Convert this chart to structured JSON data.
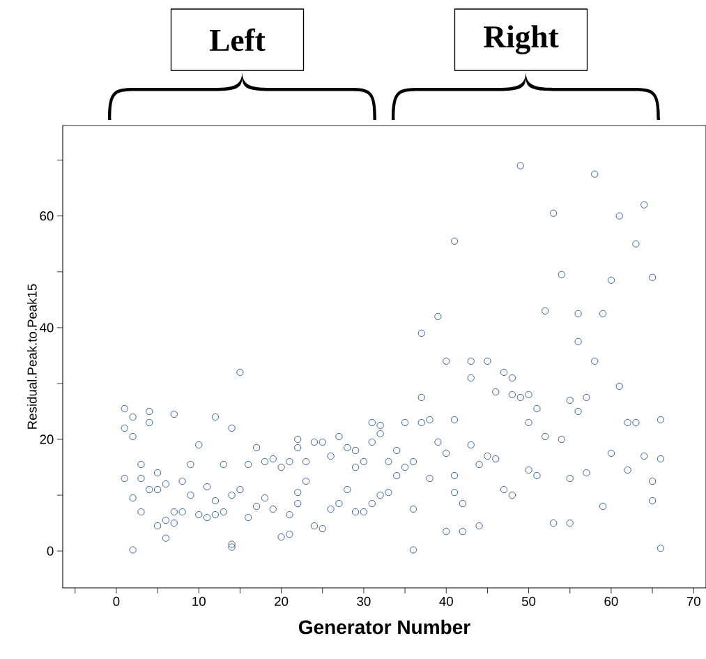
{
  "chart_data": {
    "type": "scatter",
    "xlabel": "Generator Number",
    "ylabel": "Residual.Peak.to.Peak15",
    "annotations": [
      "Left",
      "Right"
    ],
    "x": [
      1,
      1,
      1,
      2,
      2,
      2,
      2,
      3,
      3,
      3,
      4,
      4,
      4,
      5,
      5,
      5,
      6,
      6,
      6,
      7,
      7,
      7,
      8,
      8,
      9,
      9,
      10,
      10,
      11,
      11,
      12,
      12,
      12,
      13,
      13,
      14,
      14,
      14,
      14,
      15,
      15,
      16,
      16,
      17,
      17,
      18,
      18,
      19,
      19,
      20,
      20,
      21,
      21,
      21,
      22,
      22,
      22,
      22,
      23,
      23,
      24,
      24,
      25,
      25,
      26,
      26,
      27,
      27,
      28,
      28,
      29,
      29,
      29,
      30,
      30,
      31,
      31,
      31,
      32,
      32,
      32,
      33,
      33,
      34,
      34,
      35,
      35,
      36,
      36,
      36,
      37,
      37,
      37,
      38,
      38,
      39,
      39,
      40,
      40,
      40,
      41,
      41,
      41,
      41,
      42,
      42,
      43,
      43,
      43,
      44,
      44,
      45,
      45,
      46,
      46,
      47,
      47,
      48,
      48,
      48,
      49,
      49,
      50,
      50,
      50,
      51,
      51,
      52,
      52,
      53,
      53,
      54,
      54,
      55,
      55,
      55,
      56,
      56,
      56,
      57,
      57,
      58,
      58,
      59,
      59,
      60,
      60,
      61,
      61,
      62,
      62,
      63,
      63,
      64,
      64,
      65,
      65,
      65,
      66,
      66,
      66
    ],
    "values": [
      13,
      22,
      25.5,
      9.5,
      20.5,
      24,
      0.2,
      7,
      13,
      15.5,
      11,
      23,
      25,
      4.5,
      11,
      14,
      5.5,
      12,
      2.3,
      7,
      24.5,
      5,
      7,
      12.5,
      10,
      15.5,
      6.5,
      19,
      6,
      11.5,
      9,
      24,
      6.5,
      7,
      15.5,
      10,
      22,
      0.7,
      1.2,
      11,
      32,
      6,
      15.5,
      8,
      18.5,
      9.5,
      16,
      7.5,
      16.5,
      2.5,
      15,
      6.5,
      16,
      3,
      10.5,
      18.5,
      8.5,
      20,
      12.5,
      16,
      4.5,
      19.5,
      4,
      19.5,
      7.5,
      17,
      8.5,
      20.5,
      11,
      18.5,
      7,
      15,
      18,
      7,
      16,
      8.5,
      19.5,
      23,
      10,
      21,
      22.5,
      10.5,
      16,
      13.5,
      18,
      15,
      23,
      7.5,
      16,
      0.2,
      27.5,
      39,
      23,
      13,
      23.5,
      19.5,
      42,
      17.5,
      34,
      3.5,
      23.5,
      55.5,
      13.5,
      10.5,
      3.5,
      8.5,
      19,
      31,
      34,
      4.5,
      15.5,
      17,
      34,
      16.5,
      28.5,
      11,
      32,
      10,
      31,
      28,
      27.5,
      69,
      14.5,
      28,
      23,
      13.5,
      25.5,
      20.5,
      43,
      5,
      60.5,
      20,
      49.5,
      13,
      27,
      5,
      25,
      42.5,
      37.5,
      14,
      27.5,
      34,
      67.5,
      8,
      42.5,
      17.5,
      48.5,
      29.5,
      60,
      14.5,
      23,
      23,
      55,
      17,
      62,
      9,
      49,
      12.5,
      16.5,
      23.5,
      0.5
    ],
    "color": "#0b3f80",
    "marker": "circle",
    "xlim": [
      -6.5,
      71.5
    ],
    "ylim": [
      -6.6,
      76.2
    ],
    "xticks": [
      {
        "value": -5,
        "label": null
      },
      0,
      {
        "value": 5,
        "label": null
      },
      10,
      {
        "value": 15,
        "label": null
      },
      20,
      {
        "value": 25,
        "label": null
      },
      30,
      {
        "value": 35,
        "label": null
      },
      40,
      {
        "value": 45,
        "label": null
      },
      50,
      {
        "value": 55,
        "label": null
      },
      60,
      {
        "value": 65,
        "label": null
      },
      70
    ],
    "yticks": [
      0,
      {
        "value": 10,
        "label": null
      },
      20,
      {
        "value": 30,
        "label": null
      },
      40,
      {
        "value": 50,
        "label": null
      },
      60,
      {
        "value": 70,
        "label": null
      }
    ]
  }
}
